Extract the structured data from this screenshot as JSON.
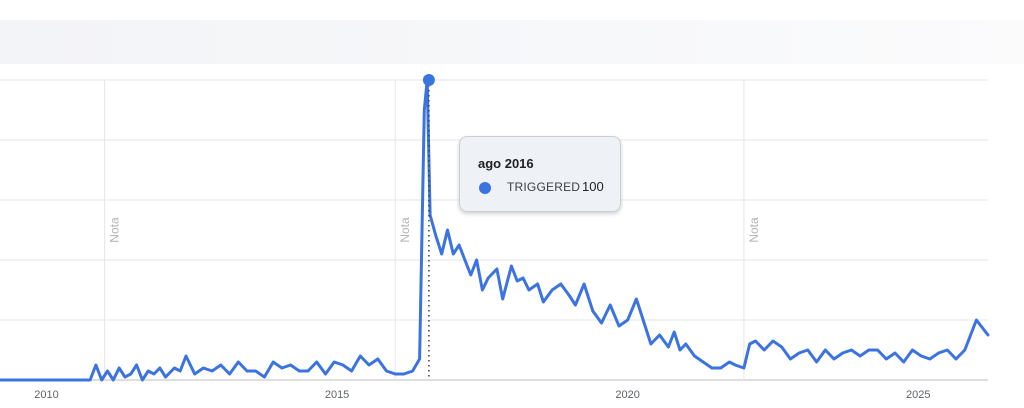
{
  "chart_data": {
    "type": "line",
    "x_tick_labels": [
      "2010",
      "2015",
      "2020",
      "2025"
    ],
    "x_tick_years": [
      2010,
      2015,
      2020,
      2025
    ],
    "xlim": [
      2009.2,
      2026.2
    ],
    "ylim": [
      0,
      100
    ],
    "grid": true,
    "note_label": "Nota",
    "note_years": [
      2011,
      2016,
      2022
    ],
    "series": [
      {
        "name": "TRIGGERED",
        "color": "#3b73e0",
        "x": [
          2009.2,
          2009.5,
          2010.0,
          2010.5,
          2010.75,
          2010.85,
          2010.95,
          2011.05,
          2011.15,
          2011.25,
          2011.35,
          2011.45,
          2011.55,
          2011.65,
          2011.75,
          2011.85,
          2011.95,
          2012.05,
          2012.2,
          2012.3,
          2012.4,
          2012.55,
          2012.7,
          2012.85,
          2013.0,
          2013.15,
          2013.3,
          2013.45,
          2013.6,
          2013.75,
          2013.9,
          2014.05,
          2014.2,
          2014.35,
          2014.5,
          2014.65,
          2014.8,
          2014.95,
          2015.1,
          2015.25,
          2015.4,
          2015.55,
          2015.7,
          2015.85,
          2016.0,
          2016.15,
          2016.3,
          2016.42,
          2016.5,
          2016.55,
          2016.6,
          2016.7,
          2016.8,
          2016.9,
          2017.0,
          2017.1,
          2017.2,
          2017.3,
          2017.4,
          2017.5,
          2017.6,
          2017.75,
          2017.85,
          2018.0,
          2018.1,
          2018.2,
          2018.3,
          2018.45,
          2018.55,
          2018.7,
          2018.85,
          2019.0,
          2019.1,
          2019.25,
          2019.4,
          2019.55,
          2019.7,
          2019.85,
          2020.0,
          2020.15,
          2020.25,
          2020.4,
          2020.55,
          2020.7,
          2020.8,
          2020.9,
          2021.0,
          2021.15,
          2021.3,
          2021.45,
          2021.6,
          2021.75,
          2021.85,
          2022.0,
          2022.1,
          2022.2,
          2022.35,
          2022.5,
          2022.65,
          2022.8,
          2022.95,
          2023.1,
          2023.25,
          2023.4,
          2023.55,
          2023.7,
          2023.85,
          2024.0,
          2024.15,
          2024.3,
          2024.45,
          2024.6,
          2024.75,
          2024.9,
          2025.05,
          2025.2,
          2025.35,
          2025.5,
          2025.65,
          2025.8,
          2025.9,
          2026.0,
          2026.2
        ],
        "values": [
          0,
          0,
          0,
          0,
          0,
          5,
          0,
          3,
          0,
          4,
          1,
          2,
          5,
          0,
          3,
          2,
          4,
          1,
          4,
          3,
          8,
          2,
          4,
          3,
          5,
          2,
          6,
          3,
          3,
          1,
          6,
          4,
          5,
          3,
          3,
          6,
          2,
          6,
          5,
          3,
          8,
          5,
          7,
          3,
          2,
          2,
          3,
          7,
          90,
          100,
          55,
          48,
          42,
          50,
          42,
          45,
          40,
          35,
          40,
          30,
          34,
          37,
          27,
          38,
          33,
          34,
          30,
          32,
          26,
          30,
          32,
          28,
          25,
          32,
          23,
          19,
          25,
          18,
          20,
          27,
          21,
          12,
          15,
          11,
          16,
          10,
          12,
          8,
          6,
          4,
          4,
          6,
          5,
          4,
          12,
          13,
          10,
          13,
          11,
          7,
          9,
          10,
          6,
          10,
          7,
          9,
          10,
          8,
          10,
          10,
          7,
          9,
          6,
          10,
          8,
          7,
          9,
          10,
          7,
          10,
          15,
          20,
          15
        ]
      }
    ],
    "tooltip": {
      "title": "ago 2016",
      "series_name": "TRIGGERED",
      "value_text": "100",
      "x": 2016.58
    }
  }
}
